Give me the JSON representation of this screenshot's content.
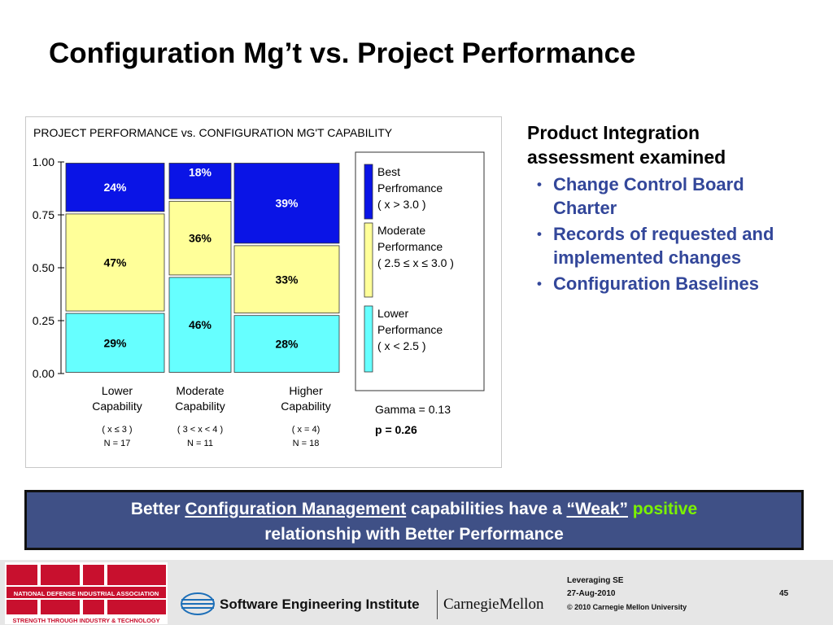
{
  "slide": {
    "title": "Configuration Mg’t vs. Project Performance",
    "chart_title": "PROJECT PERFORMANCE vs. CONFIGURATION MG'T   CAPABILITY",
    "legend": [
      {
        "line1": "Best",
        "line2": "Perfromance",
        "line3": "( x > 3.0 )"
      },
      {
        "line1": "Moderate",
        "line2": "Performance",
        "line3": "( 2.5 ≤ x ≤ 3.0 )"
      },
      {
        "line1": "Lower",
        "line2": "Performance",
        "line3": "( x < 2.5 )"
      }
    ],
    "gamma": "Gamma = 0.13",
    "p_value": "p = 0.26",
    "right": {
      "heading": "Product Integration assessment examined",
      "bullets": [
        "Change Control Board Charter",
        "Records of requested and implemented changes",
        "Configuration Baselines"
      ]
    },
    "banner": {
      "part1": "Better ",
      "link": "Configuration Management",
      "part2": " capabilities have a ",
      "weak": "“Weak”",
      "positive": " positive",
      "line2": "relationship with Better Performance"
    },
    "footer": {
      "org_name": "NATIONAL DEFENSE INDUSTRIAL ASSOCIATION",
      "org_tagline": "STRENGTH THROUGH INDUSTRY & TECHNOLOGY",
      "sei": "Software Engineering Institute",
      "cmu": "CarnegieMellon",
      "event": "Leveraging SE",
      "date": "27-Aug-2010",
      "copyright": "© 2010 Carnegie Mellon University",
      "page": "45"
    }
  },
  "colors": {
    "best": "#0a14e6",
    "moderate": "#ffff99",
    "lower": "#66ffff",
    "banner": "#3f5086",
    "accent_text": "#33479a",
    "positive": "#7cf200",
    "ndia_red": "#c8102e"
  },
  "chart_data": {
    "type": "bar",
    "stacked": true,
    "categories": [
      "Lower Capability",
      "Moderate Capability",
      "Higher Capability"
    ],
    "category_lines": [
      [
        "Lower",
        "Capability"
      ],
      [
        "Moderate",
        "Capability"
      ],
      [
        "Higher",
        "Capability"
      ]
    ],
    "conditions": [
      "( x ≤ 3 )",
      "( 3 < x < 4 )",
      "( x = 4)"
    ],
    "n_values": [
      "N = 17",
      "N = 11",
      "N = 18"
    ],
    "series": [
      {
        "name": "Lower Performance ( x < 2.5 )",
        "key": "lower",
        "values": [
          0.29,
          0.46,
          0.28
        ],
        "labels": [
          "29%",
          "46%",
          "28%"
        ]
      },
      {
        "name": "Moderate Performance ( 2.5 ≤ x ≤ 3.0 )",
        "key": "moderate",
        "values": [
          0.47,
          0.36,
          0.33
        ],
        "labels": [
          "47%",
          "36%",
          "33%"
        ]
      },
      {
        "name": "Best Perfromance ( x > 3.0 )",
        "key": "best",
        "values": [
          0.24,
          0.18,
          0.39
        ],
        "labels": [
          "24%",
          "18%",
          "39%"
        ]
      }
    ],
    "yticks": [
      "1.00",
      "0.75",
      "0.50",
      "0.25",
      "0.00"
    ],
    "ytick_values": [
      1.0,
      0.75,
      0.5,
      0.25,
      0.0
    ],
    "ylim": [
      0,
      1
    ]
  }
}
